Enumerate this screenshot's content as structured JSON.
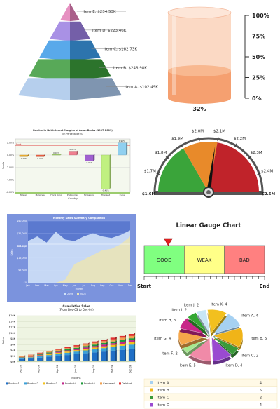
{
  "chart_data": [
    {
      "type": "pyramid",
      "categories": [
        "Item E",
        "Item D",
        "Item C",
        "Item B",
        "Item A"
      ],
      "values": [
        234.53,
        223.46,
        182.73,
        248.98,
        102.49
      ],
      "labels": [
        "Item E, $234.53K",
        "Item D, $223.46K",
        "Item C, $182.73K",
        "Item B, $248.98K",
        "Item A, $102.49K"
      ],
      "colors": [
        "#e27eb6",
        "#9a7ee0",
        "#3c9ae6",
        "#3b9a3b",
        "#a9c7ea"
      ]
    },
    {
      "type": "cylinder-gauge",
      "value": 32,
      "value_label": "32%",
      "ticks": [
        "100%",
        "75%",
        "50%",
        "25%",
        "0%"
      ],
      "color": "#f5a070"
    },
    {
      "type": "bar",
      "title": "Decline in Net Interest Margins of Asian Banks (1997-2001)",
      "subtitle": "(In Percentage %)",
      "xlabel": "Country",
      "ylabel": "Points",
      "categories": [
        "Taiwan",
        "Malaysia",
        "Hong Kong",
        "Philippines",
        "Singapore",
        "Thailand",
        "India"
      ],
      "values": [
        -0.26,
        -0.27,
        0.06,
        0.62,
        -0.96,
        -5.45,
        1.95
      ],
      "value_labels": [
        "-0.26%",
        "-0.27%",
        "0.06%",
        "0.62%",
        "-0.96%",
        "-5.45%",
        "1.95%"
      ],
      "ytick_labels": [
        "2.00%",
        "0.00%",
        "-2.00%",
        "-4.00%",
        "-6.00%"
      ],
      "reference_line": "Bank",
      "ylim": [
        -6,
        2.6
      ],
      "colors": [
        "#f0b030",
        "#f06040",
        "#8fd040",
        "#f08090",
        "#a060d0",
        "#c0f080",
        "#90d0f0"
      ]
    },
    {
      "type": "angular-gauge",
      "tick_labels": [
        "$1.6M",
        "$1.7M",
        "$1.8M",
        "$1.9M",
        "$2.0M",
        "$2.1M",
        "$2.2M",
        "$2.3M",
        "$2.4M",
        "$2.5M"
      ],
      "min": 1.6,
      "max": 2.5,
      "value": 2.09,
      "bands": [
        {
          "from": 1.6,
          "to": 1.9,
          "color": "#3aa43a"
        },
        {
          "from": 1.9,
          "to": 2.1,
          "color": "#e88a2a"
        },
        {
          "from": 2.1,
          "to": 2.5,
          "color": "#c0232a"
        }
      ]
    },
    {
      "type": "area",
      "title": "Monthly Sales Summary Comparison",
      "xlabel": "Month",
      "ylabel": "Sales",
      "categories": [
        "Jan",
        "Feb",
        "Mar",
        "Apr",
        "May",
        "Jun",
        "Jul",
        "Aug",
        "Sep",
        "Oct",
        "Nov",
        "Dec"
      ],
      "ytick_labels": [
        "$40,000",
        "$32,000",
        "$24,000",
        "$16,000",
        "$8,000",
        "$0"
      ],
      "ylim": [
        0,
        40000
      ],
      "reference_line": "Average",
      "reference_value": 25000,
      "series": [
        {
          "name": "2004",
          "values": [
            27000,
            30000,
            26000,
            33000,
            28000,
            27000,
            30000,
            32000,
            30000,
            29000,
            31000,
            34000
          ],
          "color": "#cfe1f8"
        },
        {
          "name": "2003",
          "values": [
            0,
            0,
            0,
            0,
            2000,
            12000,
            15000,
            18000,
            21000,
            22000,
            25000,
            30000
          ],
          "color": "#e8e4b8"
        }
      ]
    },
    {
      "type": "linear-gauge",
      "title": "Linear Gauge Chart",
      "start_label": "Start",
      "end_label": "End",
      "ranges": [
        {
          "label": "GOOD",
          "color": "#80ff80"
        },
        {
          "label": "WEAK",
          "color": "#ffff88"
        },
        {
          "label": "BAD",
          "color": "#ff8080"
        }
      ],
      "pointer_value": 0.2
    },
    {
      "type": "stacked-bar",
      "title": "Cumulative Sales",
      "subtitle": "(From Dec-03 to Dec-04)",
      "xlabel": "Months",
      "ylabel": "Sales",
      "ytick_labels": [
        "$16K",
        "$14K",
        "$12K",
        "$10K",
        "$8K",
        "$6K",
        "$4K",
        "$2K",
        "$0K"
      ],
      "xtick_labels": [
        "Dec-03",
        "Feb-04",
        "Apr-04",
        "Jun-04",
        "Aug-04",
        "Oct-04",
        "Dec-04"
      ],
      "ylim": [
        0,
        16
      ],
      "categories": [
        "Dec-03",
        "Jan-04",
        "Feb-04",
        "Mar-04",
        "Apr-04",
        "May-04",
        "Jun-04",
        "Jul-04",
        "Aug-04",
        "Sep-04",
        "Oct-04",
        "Nov-04",
        "Dec-04"
      ],
      "series": [
        {
          "name": "Product1",
          "values": [
            1.0,
            1.2,
            1.5,
            1.8,
            2.1,
            2.4,
            2.7,
            3.0,
            3.3,
            3.6,
            3.9,
            4.2,
            4.5
          ],
          "color": "#1f6fc5"
        },
        {
          "name": "Product2",
          "values": [
            0.3,
            0.4,
            0.5,
            0.6,
            0.7,
            0.8,
            0.9,
            1.0,
            1.1,
            1.2,
            1.3,
            1.4,
            1.5
          ],
          "color": "#3aa0d8"
        },
        {
          "name": "Product3",
          "values": [
            0.2,
            0.2,
            0.3,
            0.3,
            0.4,
            0.4,
            0.5,
            0.5,
            0.6,
            0.6,
            0.7,
            0.7,
            0.8
          ],
          "color": "#f4c21a"
        },
        {
          "name": "Product4",
          "values": [
            0.1,
            0.2,
            0.2,
            0.3,
            0.3,
            0.4,
            0.4,
            0.5,
            0.5,
            0.6,
            0.6,
            0.7,
            0.7
          ],
          "color": "#c2268a"
        },
        {
          "name": "Product5",
          "values": [
            0.1,
            0.2,
            0.2,
            0.3,
            0.3,
            0.4,
            0.4,
            0.5,
            0.5,
            0.6,
            0.6,
            0.7,
            0.7
          ],
          "color": "#1f9a3a"
        },
        {
          "name": "Canceled",
          "values": [
            0.2,
            0.2,
            0.3,
            0.3,
            0.4,
            0.4,
            0.5,
            0.5,
            0.6,
            0.6,
            0.7,
            0.7,
            0.8
          ],
          "color": "#f0a050"
        },
        {
          "name": "Deleted",
          "values": [
            0.1,
            0.1,
            0.2,
            0.2,
            0.3,
            0.3,
            0.4,
            0.4,
            0.5,
            0.5,
            0.6,
            0.6,
            0.7
          ],
          "color": "#e03030"
        }
      ]
    },
    {
      "type": "pie",
      "categories": [
        "Item A",
        "Item B",
        "Item C",
        "Item D",
        "Item E",
        "Item F",
        "Item G",
        "Item H",
        "Item I",
        "Item J",
        "Item K"
      ],
      "values": [
        4,
        5,
        2,
        4,
        5,
        2,
        4,
        3,
        2,
        2,
        4
      ],
      "labels": [
        "Item A, 4",
        "Item B, 5",
        "Item C, 2",
        "Item D, 4",
        "Item E, 5",
        "Item F, 2",
        "Item G, 4",
        "Item H, 3",
        "Item I, 2",
        "Item J, 2",
        "Item K, 4"
      ],
      "colors": [
        "#a6d1f2",
        "#f0b418",
        "#3a9a3a",
        "#9a4ad0",
        "#f08aa8",
        "#a6e890",
        "#f5a64a",
        "#c82788",
        "#33a733",
        "#c8e6f6",
        "#f2c01f"
      ],
      "legend": [
        {
          "label": "Item A",
          "value": "4",
          "color": "#a6d1f2"
        },
        {
          "label": "Item B",
          "value": "5",
          "color": "#f0b418"
        },
        {
          "label": "Item C",
          "value": "2",
          "color": "#3a9a3a"
        },
        {
          "label": "Item D",
          "value": "4",
          "color": "#9a4ad0"
        }
      ]
    }
  ]
}
